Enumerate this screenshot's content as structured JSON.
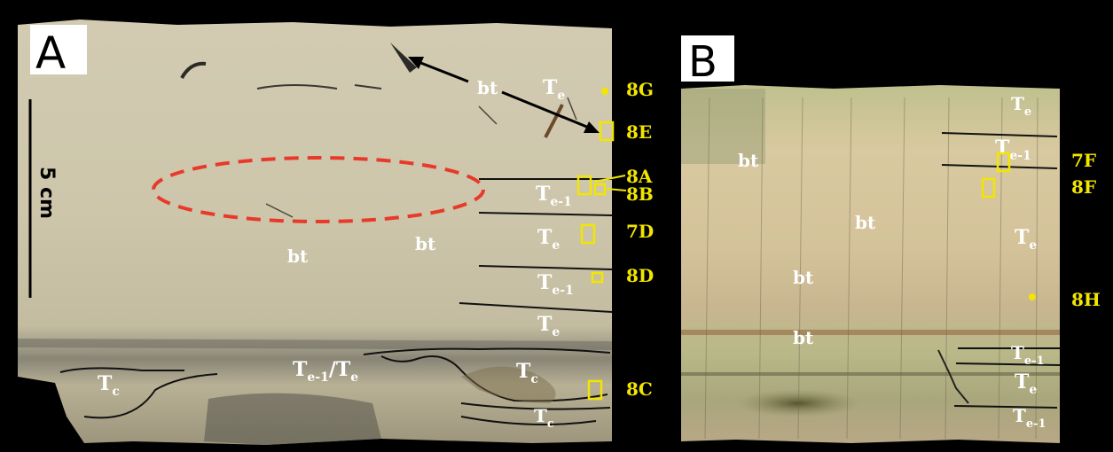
{
  "panels": {
    "a": {
      "letter": "A"
    },
    "b": {
      "letter": "B"
    }
  },
  "scale_bar": {
    "label": "5 cm"
  },
  "panel_a_labels": {
    "bt_arrow": "bt",
    "bt_left": "bt",
    "bt_mid": "bt",
    "te_top": "T",
    "te_top_sub": "e",
    "te1_upper": "T",
    "te1_upper_sub": "e-1",
    "te_mid": "T",
    "te_mid_sub": "e",
    "te1_lower": "T",
    "te1_lower_sub": "e-1",
    "te_lower": "T",
    "te_lower_sub": "e",
    "te1te_main": "T",
    "te1te_sub1": "e-1",
    "te1te_slash": "/T",
    "te1te_sub2": "e",
    "tc_left": "T",
    "tc_left_sub": "c",
    "tc_right": "T",
    "tc_right_sub": "c",
    "tc_bottom": "T",
    "tc_bottom_sub": "c"
  },
  "panel_a_figrefs": [
    "8G",
    "8E",
    "8A",
    "8B",
    "7D",
    "8D",
    "8C"
  ],
  "panel_b_labels": {
    "bt_1": "bt",
    "bt_2": "bt",
    "bt_3": "bt",
    "bt_4": "bt",
    "te_top": "T",
    "te_top_sub": "e",
    "te1_upper": "T",
    "te1_upper_sub": "e-1",
    "te_mid": "T",
    "te_mid_sub": "e",
    "te1_lower": "T",
    "te1_lower_sub": "e-1",
    "te_low": "T",
    "te_low_sub": "e",
    "te1_bottom": "T",
    "te1_bottom_sub": "e-1"
  },
  "panel_b_figrefs": [
    "7F",
    "8F",
    "8H"
  ],
  "colors": {
    "background": "#000000",
    "annotation_yellow": "#f2e600",
    "ellipse_red": "#e8392a",
    "core_a": "#cfc8ad",
    "core_b": "#c9c29a"
  }
}
